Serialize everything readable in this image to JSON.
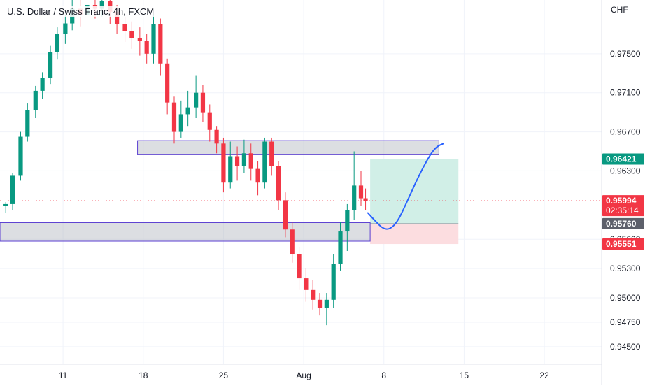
{
  "header": {
    "symbol_title": "U.S. Dollar / Swiss Franc, 4h, FXCM",
    "currency": "CHF"
  },
  "chart_data": {
    "type": "candlestick",
    "y_axis": {
      "ticks": [
        0.945,
        0.9475,
        0.95,
        0.953,
        0.956,
        0.963,
        0.967,
        0.971,
        0.975
      ],
      "tick_labels": [
        "0.94500",
        "0.94750",
        "0.95000",
        "0.95300",
        "0.95600",
        "0.96300",
        "0.96700",
        "0.97100",
        "0.97500"
      ],
      "range": [
        0.9432,
        0.9805
      ]
    },
    "x_axis": {
      "tick_labels": [
        "11",
        "18",
        "25",
        "Aug",
        "8",
        "15",
        "22"
      ],
      "tick_days": [
        11,
        18,
        25,
        32,
        39,
        46,
        53
      ],
      "range_days": [
        5.5,
        58
      ]
    },
    "price_labels": [
      {
        "text": "0.96421",
        "value": 0.96421,
        "color": "#089981"
      },
      {
        "text": "0.95994",
        "value": 0.95994,
        "color": "#f23645",
        "sub": "02:35:14"
      },
      {
        "text": "0.95760",
        "value": 0.9576,
        "color": "#5d606b"
      },
      {
        "text": "0.95551",
        "value": 0.95551,
        "color": "#f23645"
      }
    ],
    "current_price": 0.95994,
    "zones": [
      {
        "name": "resistance",
        "day_from": 17.5,
        "day_to": 43.8,
        "top": 0.9661,
        "bottom": 0.9647
      },
      {
        "name": "support",
        "day_from": 5.5,
        "day_to": 37.8,
        "top": 0.9577,
        "bottom": 0.9558
      }
    ],
    "position": {
      "day_from": 37.8,
      "day_to": 45.5,
      "target": 0.96421,
      "entry": 0.9576,
      "stop": 0.95551,
      "profit_color": "#d1efe7",
      "loss_color": "#fcdde0"
    },
    "projection": [
      [
        37.6,
        0.9587
      ],
      [
        38.3,
        0.9578
      ],
      [
        38.9,
        0.9571
      ],
      [
        39.5,
        0.957
      ],
      [
        40.2,
        0.9578
      ],
      [
        41.0,
        0.9598
      ],
      [
        42.0,
        0.9624
      ],
      [
        43.0,
        0.9646
      ],
      [
        43.6,
        0.9655
      ],
      [
        44.2,
        0.9658
      ]
    ],
    "candles": [
      [
        6.0,
        0.9594,
        0.9596,
        0.9587,
        0.9598,
        0.9582
      ],
      [
        6.6,
        0.9596,
        0.9625,
        0.959,
        0.9628
      ],
      [
        7.3,
        0.9625,
        0.9665,
        0.962,
        0.967
      ],
      [
        7.9,
        0.9665,
        0.9692,
        0.966,
        0.9699
      ],
      [
        8.6,
        0.9692,
        0.9712,
        0.9684,
        0.9717
      ],
      [
        9.2,
        0.9712,
        0.9725,
        0.9704,
        0.9731
      ],
      [
        9.9,
        0.9725,
        0.9752,
        0.9719,
        0.9758
      ],
      [
        10.5,
        0.9752,
        0.977,
        0.9744,
        0.9777
      ],
      [
        11.2,
        0.977,
        0.9781,
        0.976,
        0.979
      ],
      [
        11.8,
        0.9781,
        0.9796,
        0.9774,
        0.9806
      ],
      [
        12.5,
        0.9796,
        0.979,
        0.9778,
        0.9806
      ],
      [
        13.1,
        0.979,
        0.98,
        0.9782,
        0.9806
      ],
      [
        13.8,
        0.98,
        0.9796,
        0.9786,
        0.9806
      ],
      [
        14.4,
        0.9796,
        0.9804,
        0.9788,
        0.9806
      ],
      [
        15.1,
        0.9804,
        0.9793,
        0.978,
        0.9806
      ],
      [
        15.7,
        0.9793,
        0.978,
        0.977,
        0.98
      ],
      [
        16.4,
        0.978,
        0.9773,
        0.9762,
        0.979
      ],
      [
        17.0,
        0.9773,
        0.9766,
        0.9755,
        0.9783
      ],
      [
        17.7,
        0.9766,
        0.9763,
        0.9748,
        0.9777
      ],
      [
        18.3,
        0.9763,
        0.975,
        0.974,
        0.977
      ],
      [
        18.9,
        0.975,
        0.978,
        0.974,
        0.979
      ],
      [
        19.5,
        0.978,
        0.974,
        0.9728,
        0.9786
      ],
      [
        20.1,
        0.974,
        0.97,
        0.9688,
        0.9745
      ],
      [
        20.7,
        0.97,
        0.967,
        0.9658,
        0.9706
      ],
      [
        21.3,
        0.967,
        0.9688,
        0.9664,
        0.9702
      ],
      [
        21.9,
        0.9688,
        0.9695,
        0.9676,
        0.9712
      ],
      [
        22.6,
        0.9695,
        0.971,
        0.9684,
        0.9728
      ],
      [
        23.2,
        0.971,
        0.969,
        0.968,
        0.9718
      ],
      [
        23.8,
        0.969,
        0.9672,
        0.966,
        0.9698
      ],
      [
        24.4,
        0.9672,
        0.9658,
        0.9648,
        0.9676
      ],
      [
        25.0,
        0.9658,
        0.9618,
        0.9608,
        0.9664
      ],
      [
        25.6,
        0.9618,
        0.9645,
        0.9612,
        0.966
      ],
      [
        26.2,
        0.9645,
        0.9635,
        0.962,
        0.9655
      ],
      [
        26.8,
        0.9635,
        0.9648,
        0.9628,
        0.9662
      ],
      [
        27.4,
        0.9648,
        0.9632,
        0.962,
        0.9658
      ],
      [
        28.0,
        0.9632,
        0.9618,
        0.9605,
        0.964
      ],
      [
        28.6,
        0.9618,
        0.966,
        0.9612,
        0.9664
      ],
      [
        29.2,
        0.966,
        0.9635,
        0.9625,
        0.9664
      ],
      [
        29.8,
        0.9635,
        0.96,
        0.959,
        0.964
      ],
      [
        30.4,
        0.96,
        0.957,
        0.9562,
        0.9608
      ],
      [
        31.0,
        0.957,
        0.9545,
        0.9536,
        0.9578
      ],
      [
        31.6,
        0.9545,
        0.952,
        0.9508,
        0.9552
      ],
      [
        32.2,
        0.952,
        0.9508,
        0.9496,
        0.953
      ],
      [
        32.8,
        0.9508,
        0.9498,
        0.9488,
        0.9518
      ],
      [
        33.4,
        0.9498,
        0.949,
        0.9482,
        0.9505
      ],
      [
        34.0,
        0.949,
        0.9498,
        0.9472,
        0.9505
      ],
      [
        34.6,
        0.9498,
        0.9535,
        0.949,
        0.9545
      ],
      [
        35.2,
        0.9535,
        0.9568,
        0.9528,
        0.9578
      ],
      [
        35.8,
        0.9568,
        0.959,
        0.9548,
        0.9596
      ],
      [
        36.4,
        0.959,
        0.9615,
        0.958,
        0.965
      ],
      [
        37.0,
        0.9615,
        0.9602,
        0.9594,
        0.963
      ],
      [
        37.4,
        0.9602,
        0.9599,
        0.959,
        0.9612
      ]
    ]
  }
}
